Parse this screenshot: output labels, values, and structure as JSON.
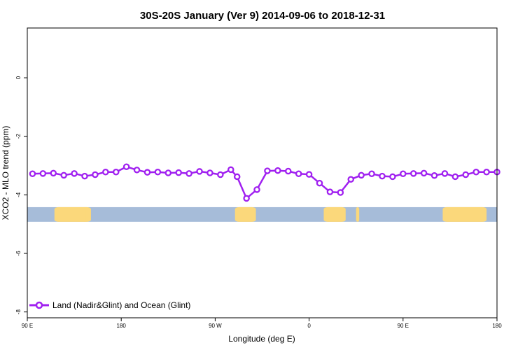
{
  "chart_data": {
    "type": "line",
    "title": "30S-20S January (Ver 9)   2014-09-06 to 2018-12-31",
    "xlabel": "Longitude (deg E)",
    "ylabel": "XCO2 - MLO trend (ppm)",
    "xlim": [
      90,
      540
    ],
    "ylim": [
      -8.2,
      1.7
    ],
    "x_ticks": [
      {
        "value": 90,
        "label": "90 E"
      },
      {
        "value": 180,
        "label": "180"
      },
      {
        "value": 270,
        "label": "90 W"
      },
      {
        "value": 360,
        "label": "0"
      },
      {
        "value": 450,
        "label": "90 E"
      },
      {
        "value": 540,
        "label": "180"
      }
    ],
    "y_ticks": [
      {
        "value": 0,
        "label": "0"
      },
      {
        "value": -2,
        "label": "-2"
      },
      {
        "value": -4,
        "label": "-4"
      },
      {
        "value": -6,
        "label": "-6"
      },
      {
        "value": -8,
        "label": "-8"
      }
    ],
    "series": [
      {
        "name": "Land (Nadir&Glint) and Ocean (Glint)",
        "color": "#a020f0",
        "x": [
          95,
          105,
          115,
          125,
          135,
          145,
          155,
          165,
          175,
          185,
          195,
          205,
          215,
          225,
          235,
          245,
          255,
          265,
          275,
          285,
          291,
          300,
          310,
          320,
          330,
          340,
          350,
          360,
          370,
          380,
          390,
          400,
          410,
          420,
          430,
          440,
          450,
          460,
          470,
          480,
          490,
          500,
          510,
          520,
          530,
          540
        ],
        "y": [
          -3.28,
          -3.27,
          -3.26,
          -3.33,
          -3.27,
          -3.36,
          -3.31,
          -3.22,
          -3.22,
          -3.04,
          -3.15,
          -3.23,
          -3.22,
          -3.25,
          -3.24,
          -3.27,
          -3.2,
          -3.25,
          -3.31,
          -3.14,
          -3.38,
          -4.12,
          -3.82,
          -3.18,
          -3.17,
          -3.19,
          -3.28,
          -3.3,
          -3.6,
          -3.9,
          -3.92,
          -3.47,
          -3.33,
          -3.28,
          -3.36,
          -3.38,
          -3.28,
          -3.27,
          -3.26,
          -3.34,
          -3.27,
          -3.38,
          -3.31,
          -3.22,
          -3.22,
          -3.22
        ]
      }
    ],
    "surface_band": {
      "y_range": [
        -4.42,
        -4.92
      ],
      "ocean_color": "#a6bcd9",
      "land_color": "#fbd87b",
      "land_segments": [
        [
          116,
          151
        ],
        [
          289,
          309
        ],
        [
          374,
          395
        ],
        [
          405,
          408
        ],
        [
          488,
          530
        ],
        [
          144,
          146
        ]
      ]
    },
    "legend": {
      "position": "bottom-left"
    },
    "grid": false
  }
}
